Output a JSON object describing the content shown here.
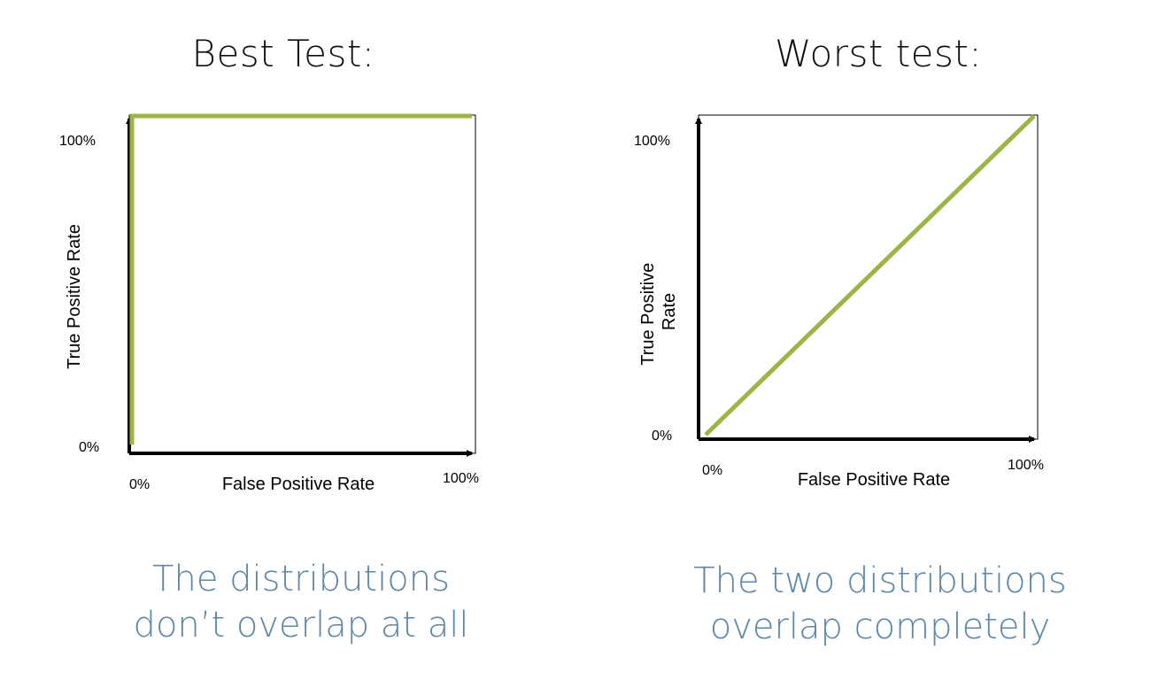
{
  "panels": [
    {
      "title": "Best Test:",
      "caption": [
        "The distributions",
        "don’t overlap at all"
      ]
    },
    {
      "title": "Worst test:",
      "caption": [
        "The two distributions",
        "overlap completely"
      ]
    }
  ],
  "chart_data": [
    {
      "type": "line",
      "xlabel": "False Positive Rate",
      "ylabel": "True Positive Rate",
      "xtick_labels": [
        "0%",
        "100%"
      ],
      "ytick_labels": [
        "0%",
        "100%"
      ],
      "xlim": [
        0,
        100
      ],
      "ylim": [
        0,
        100
      ],
      "grid": false,
      "series": [
        {
          "x": [
            0,
            0,
            100
          ],
          "y": [
            0,
            100,
            100
          ]
        }
      ],
      "line_color": "#9cb543"
    },
    {
      "type": "line",
      "xlabel": "False Positive Rate",
      "ylabel": "True Positive Rate",
      "xtick_labels": [
        "0%",
        "100%"
      ],
      "ytick_labels": [
        "0%",
        "100%"
      ],
      "xlim": [
        0,
        100
      ],
      "ylim": [
        0,
        100
      ],
      "grid": false,
      "series": [
        {
          "x": [
            0,
            100
          ],
          "y": [
            0,
            100
          ]
        }
      ],
      "line_color": "#9cb543"
    }
  ]
}
